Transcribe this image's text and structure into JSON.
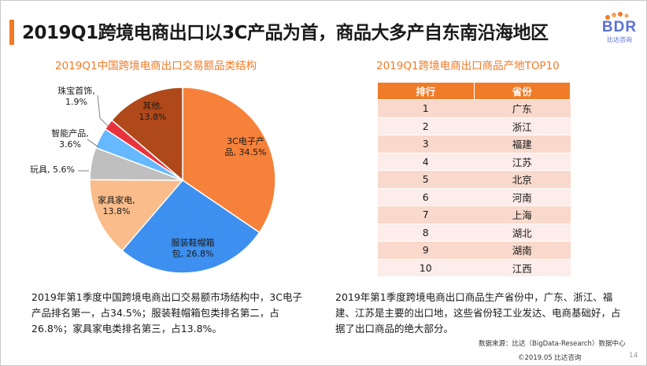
{
  "title": "2019Q1跨境电商出口以3C产品为首，商品大多产自东南沿海地区",
  "logo": {
    "text": "BDR",
    "sub": "比达咨询"
  },
  "left": {
    "subtitle": "2019Q1中国跨境电商出口交易额品类结构",
    "paragraph": "2019年第1季度中国跨境电商出口交易额市场结构中，3C电子产品排名第一，占34.5%；服装鞋帽箱包类排名第二，占26.8%；家具家电类排名第三，占13.8%。"
  },
  "right": {
    "subtitle": "2019Q1跨境电商出口商品产地TOP10",
    "table_headers": [
      "排行",
      "省份"
    ],
    "paragraph": "2019年第1季度跨境电商出口商品生产省份中，广东、浙江、福建、江苏是主要的出口地，这些省份轻工业发达、电商基础好，占据了出口商品的绝大部分。"
  },
  "chart_data": [
    {
      "type": "pie",
      "title": "2019Q1中国跨境电商出口交易额品类结构",
      "slices": [
        {
          "label": "3C电子产品",
          "value": 34.5,
          "display": "3C电子产品, 34.5%",
          "color": "#f5813a"
        },
        {
          "label": "服装鞋帽箱包",
          "value": 26.8,
          "display": "服装鞋帽箱包, 26.8%",
          "color": "#3d8ff0"
        },
        {
          "label": "家具家电",
          "value": 13.8,
          "display": "家具家电,\n13.8%",
          "color": "#f9bc8a"
        },
        {
          "label": "玩具",
          "value": 5.6,
          "display": "玩具, 5.6%",
          "color": "#bfbfbf"
        },
        {
          "label": "智能产品",
          "value": 3.6,
          "display": "智能产品,\n3.6%",
          "color": "#66b8ff"
        },
        {
          "label": "珠宝首饰",
          "value": 1.9,
          "display": "珠宝首饰,\n1.9%",
          "color": "#e8333d"
        },
        {
          "label": "其他",
          "value": 13.8,
          "display": "其他,\n13.8%",
          "color": "#b0491a"
        }
      ]
    },
    {
      "type": "table",
      "title": "2019Q1跨境电商出口商品产地TOP10",
      "columns": [
        "排行",
        "省份"
      ],
      "rows": [
        [
          "1",
          "广东"
        ],
        [
          "2",
          "浙江"
        ],
        [
          "3",
          "福建"
        ],
        [
          "4",
          "江苏"
        ],
        [
          "5",
          "北京"
        ],
        [
          "6",
          "河南"
        ],
        [
          "7",
          "上海"
        ],
        [
          "8",
          "湖北"
        ],
        [
          "9",
          "湖南"
        ],
        [
          "10",
          "江西"
        ]
      ]
    }
  ],
  "source": "数据来源：比达（BigData-Research）数据中心",
  "footer": "©2019.05  比达咨询",
  "page": "14"
}
